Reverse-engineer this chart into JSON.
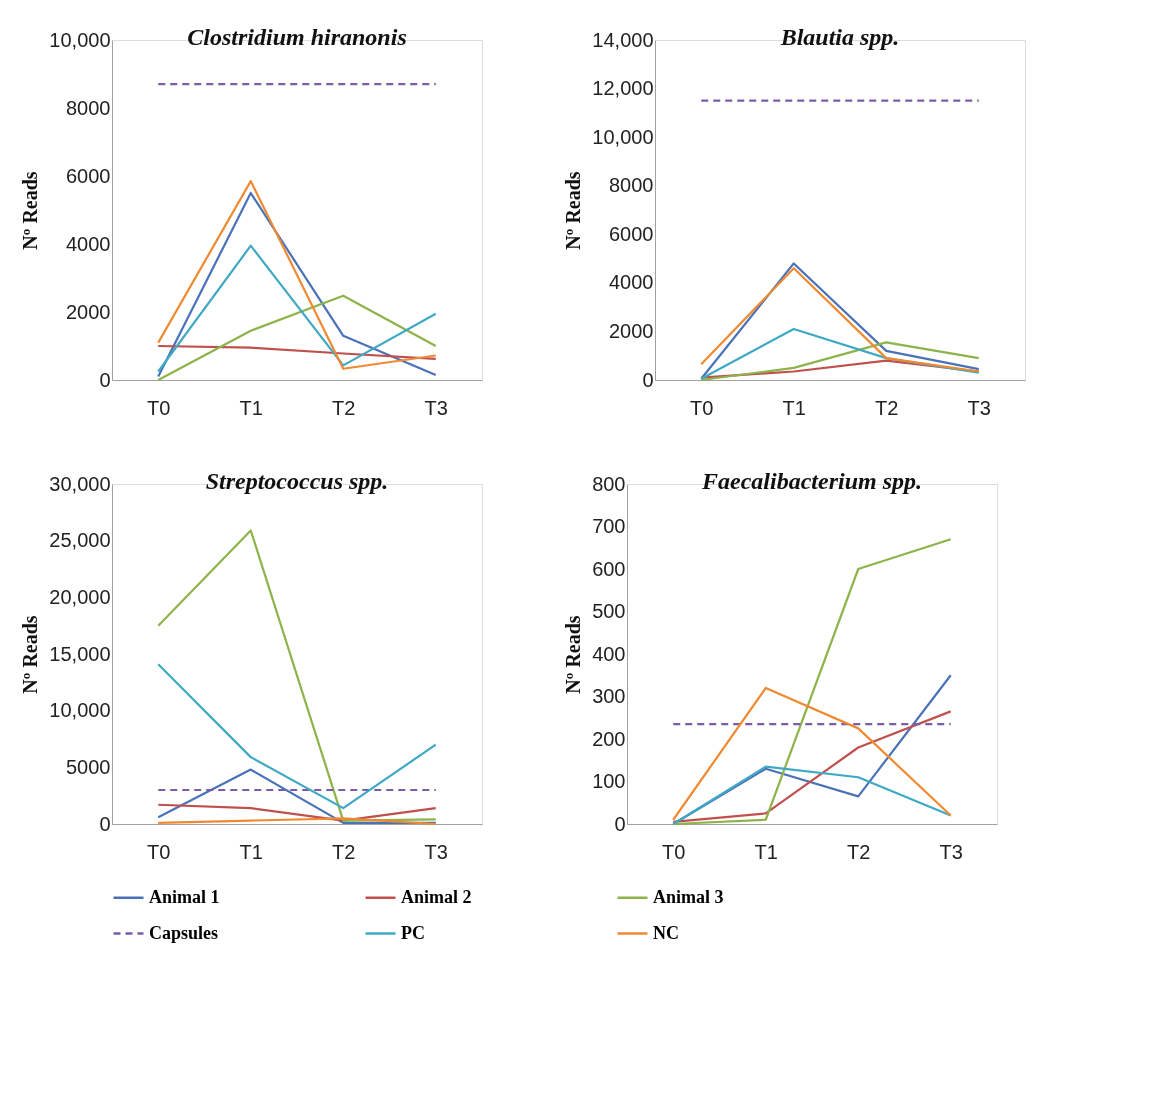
{
  "chart_data": [
    {
      "type": "line",
      "title": "Clostridium hiranonis",
      "ylabel": "Nº Reads",
      "categories": [
        "T0",
        "T1",
        "T2",
        "T3"
      ],
      "ylim": [
        0,
        10000
      ],
      "yticks": [
        0,
        2000,
        4000,
        6000,
        8000,
        {
          "value": 10000,
          "label": "10,000"
        }
      ],
      "grid": false,
      "legend": "bottom",
      "marker": "none",
      "series": [
        {
          "name": "Animal 1",
          "color": "#4a72b8",
          "values": [
            100,
            5500,
            1300,
            150
          ]
        },
        {
          "name": "Animal 2",
          "color": "#c0504d",
          "values": [
            1000,
            950,
            780,
            620
          ]
        },
        {
          "name": "Animal 3",
          "color": "#8db34a",
          "values": [
            0,
            1450,
            2480,
            1000
          ]
        },
        {
          "name": "Capsules",
          "color": "#7a5ca8",
          "line_style": "dashed",
          "values": [
            8700,
            8700,
            8700,
            8700
          ]
        },
        {
          "name": "PC",
          "color": "#3fa9c4",
          "values": [
            250,
            3950,
            430,
            1950
          ]
        },
        {
          "name": "NC",
          "color": "#f08a32",
          "values": [
            1100,
            5850,
            330,
            720
          ]
        }
      ]
    },
    {
      "type": "line",
      "title": "Blautia spp.",
      "ylabel": "Nº Reads",
      "categories": [
        "T0",
        "T1",
        "T2",
        "T3"
      ],
      "ylim": [
        0,
        14000
      ],
      "yticks": [
        0,
        2000,
        4000,
        6000,
        8000,
        {
          "value": 10000,
          "label": "10,000"
        },
        {
          "value": 12000,
          "label": "12,000"
        },
        {
          "value": 14000,
          "label": "14,000"
        }
      ],
      "grid": false,
      "legend": "bottom",
      "marker": "none",
      "series": [
        {
          "name": "Animal 1",
          "color": "#4a72b8",
          "values": [
            50,
            4800,
            1200,
            450
          ]
        },
        {
          "name": "Animal 2",
          "color": "#c0504d",
          "values": [
            100,
            350,
            800,
            350
          ]
        },
        {
          "name": "Animal 3",
          "color": "#8db34a",
          "values": [
            0,
            500,
            1550,
            900
          ]
        },
        {
          "name": "Capsules",
          "color": "#7a5ca8",
          "line_style": "dashed",
          "values": [
            11500,
            11500,
            11500,
            11500
          ]
        },
        {
          "name": "PC",
          "color": "#3fa9c4",
          "values": [
            50,
            2100,
            900,
            300
          ]
        },
        {
          "name": "NC",
          "color": "#f08a32",
          "values": [
            650,
            4600,
            900,
            350
          ]
        }
      ]
    },
    {
      "type": "line",
      "title": "Streptococcus spp.",
      "ylabel": "Nº Reads",
      "categories": [
        "T0",
        "T1",
        "T2",
        "T3"
      ],
      "ylim": [
        0,
        30000
      ],
      "yticks": [
        0,
        5000,
        {
          "value": 10000,
          "label": "10,000"
        },
        {
          "value": 15000,
          "label": "15,000"
        },
        {
          "value": 20000,
          "label": "20,000"
        },
        {
          "value": 25000,
          "label": "25,000"
        },
        {
          "value": 30000,
          "label": "30,000"
        }
      ],
      "grid": false,
      "legend": "bottom",
      "marker": "none",
      "series": [
        {
          "name": "Animal 1",
          "color": "#4a72b8",
          "values": [
            600,
            4800,
            100,
            100
          ]
        },
        {
          "name": "Animal 2",
          "color": "#c0504d",
          "values": [
            1700,
            1400,
            300,
            1400
          ]
        },
        {
          "name": "Animal 3",
          "color": "#8db34a",
          "values": [
            17500,
            25900,
            300,
            400
          ]
        },
        {
          "name": "Capsules",
          "color": "#7a5ca8",
          "line_style": "dashed",
          "values": [
            3000,
            3000,
            3000,
            3000
          ]
        },
        {
          "name": "PC",
          "color": "#3fa9c4",
          "values": [
            14100,
            5900,
            1400,
            7000
          ]
        },
        {
          "name": "NC",
          "color": "#f08a32",
          "values": [
            100,
            300,
            500,
            0
          ]
        }
      ]
    },
    {
      "type": "line",
      "title": "Faecalibacterium spp.",
      "ylabel": "Nº Reads",
      "categories": [
        "T0",
        "T1",
        "T2",
        "T3"
      ],
      "ylim": [
        0,
        800
      ],
      "yticks": [
        0,
        100,
        200,
        300,
        400,
        500,
        600,
        700,
        800
      ],
      "grid": false,
      "legend": "bottom",
      "marker": "none",
      "series": [
        {
          "name": "Animal 1",
          "color": "#4a72b8",
          "values": [
            0,
            130,
            65,
            350
          ]
        },
        {
          "name": "Animal 2",
          "color": "#c0504d",
          "values": [
            5,
            25,
            180,
            265
          ]
        },
        {
          "name": "Animal 3",
          "color": "#8db34a",
          "values": [
            0,
            10,
            600,
            670
          ]
        },
        {
          "name": "Capsules",
          "color": "#7a5ca8",
          "line_style": "dashed",
          "values": [
            235,
            235,
            235,
            235
          ]
        },
        {
          "name": "PC",
          "color": "#3fa9c4",
          "values": [
            0,
            135,
            110,
            20
          ]
        },
        {
          "name": "NC",
          "color": "#f08a32",
          "values": [
            10,
            320,
            225,
            20
          ]
        }
      ]
    }
  ]
}
